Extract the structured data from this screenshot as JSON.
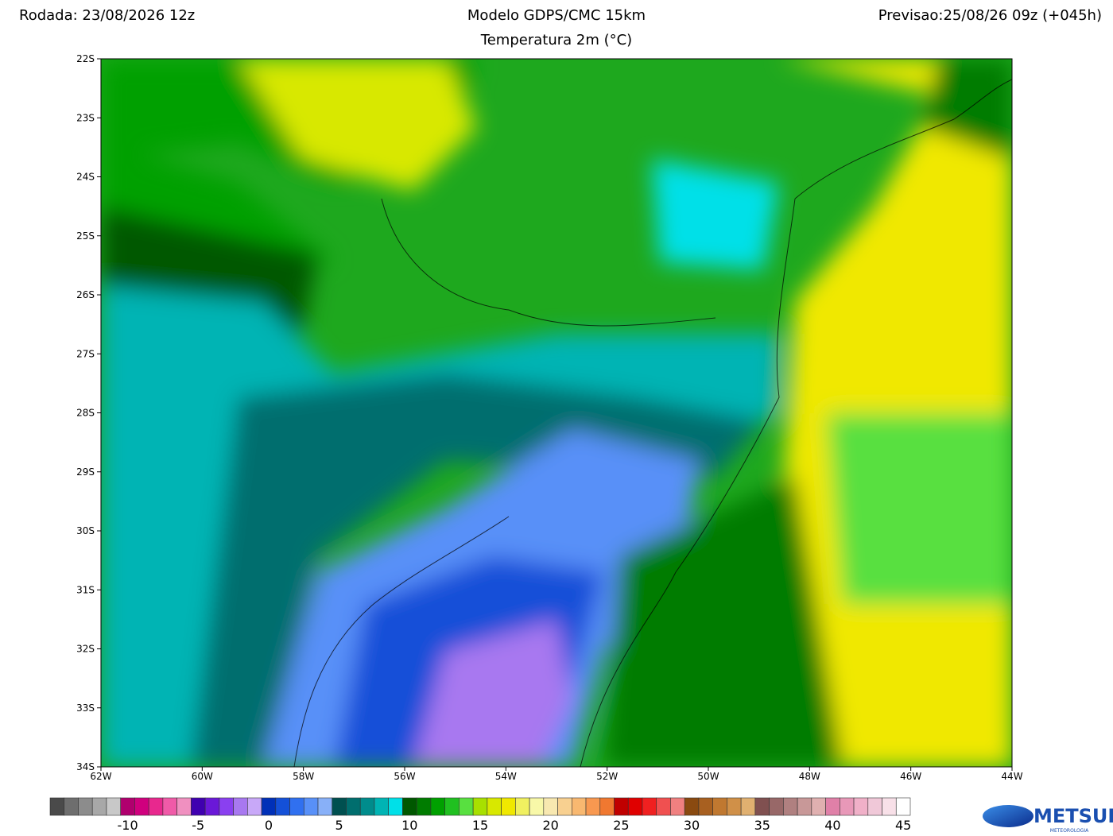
{
  "header": {
    "run": "Rodada: 23/08/2026 12z",
    "model": "Modelo GDPS/CMC 15km",
    "variable": "Temperatura 2m (°C)",
    "forecast": "Previsao:25/08/26 09z (+045h)"
  },
  "map": {
    "lat_labels": [
      "22S",
      "23S",
      "24S",
      "25S",
      "26S",
      "27S",
      "28S",
      "29S",
      "30S",
      "31S",
      "32S",
      "33S",
      "34S"
    ],
    "lon_labels": [
      "62W",
      "60W",
      "58W",
      "56W",
      "54W",
      "52W",
      "50W",
      "48W",
      "46W",
      "44W"
    ]
  },
  "colorbar": {
    "range": [
      -15,
      46
    ],
    "colors": [
      "#4a4a4a",
      "#6e6e6e",
      "#8c8c8c",
      "#a8a8a8",
      "#c8c8c8",
      "#b0006e",
      "#d0007e",
      "#e8288e",
      "#f05aa8",
      "#f090c0",
      "#4000b0",
      "#6a18d8",
      "#8a40f0",
      "#a878f0",
      "#c8a8f8",
      "#0030b8",
      "#1450d8",
      "#3070f0",
      "#5890f8",
      "#88b0f8",
      "#005050",
      "#006e6e",
      "#008c8c",
      "#00b4b4",
      "#00e0e8",
      "#005800",
      "#007c00",
      "#00a000",
      "#20c020",
      "#58e040",
      "#a8e000",
      "#d8e800",
      "#f0e800",
      "#f0f060",
      "#f8f8a8",
      "#f8e8b0",
      "#f8d090",
      "#f8b870",
      "#f89850",
      "#f07830",
      "#c00000",
      "#e00000",
      "#f02020",
      "#f05050",
      "#f08080",
      "#8a4a10",
      "#a86020",
      "#c07830",
      "#d09048",
      "#e0b070",
      "#805050",
      "#986868",
      "#b08080",
      "#c89898",
      "#e0b0b0",
      "#e080a8",
      "#e898b8",
      "#f0b0c8",
      "#f0c8d8",
      "#f8e0e8",
      "#ffffff"
    ],
    "ticks": [
      -10,
      -5,
      0,
      5,
      10,
      15,
      20,
      25,
      30,
      35,
      40,
      45
    ]
  },
  "logo": {
    "name": "METSUL",
    "tagline": "METEOROLOGIA"
  }
}
